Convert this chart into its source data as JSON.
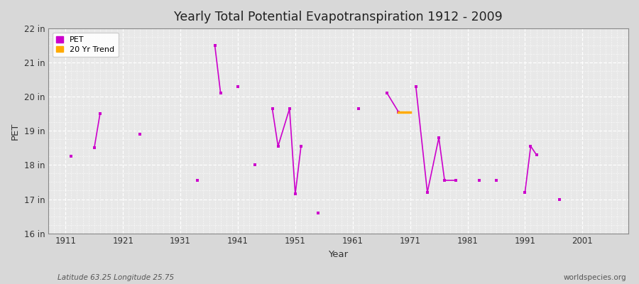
{
  "title": "Yearly Total Potential Evapotranspiration 1912 - 2009",
  "xlabel": "Year",
  "ylabel": "PET",
  "subtitle": "Latitude 63.25 Longitude 25.75",
  "watermark": "worldspecies.org",
  "ylim": [
    16,
    22
  ],
  "xlim": [
    1908,
    2009
  ],
  "yticks": [
    16,
    17,
    18,
    19,
    20,
    21,
    22
  ],
  "ytick_labels": [
    "16 in",
    "17 in",
    "18 in",
    "19 in",
    "20 in",
    "21 in",
    "22 in"
  ],
  "xticks": [
    1911,
    1921,
    1931,
    1941,
    1951,
    1961,
    1971,
    1981,
    1991,
    2001
  ],
  "background_color": "#d8d8d8",
  "plot_bg_color": "#e8e8e8",
  "pet_color": "#cc00cc",
  "trend_color": "#ffaa00",
  "pet_data": [
    [
      1912,
      18.25
    ],
    [
      1916,
      18.5
    ],
    [
      1917,
      19.5
    ],
    [
      1924,
      18.9
    ],
    [
      1934,
      17.55
    ],
    [
      1937,
      21.5
    ],
    [
      1938,
      20.1
    ],
    [
      1941,
      20.3
    ],
    [
      1944,
      18.0
    ],
    [
      1947,
      19.65
    ],
    [
      1948,
      18.55
    ],
    [
      1950,
      19.65
    ],
    [
      1951,
      17.15
    ],
    [
      1952,
      18.55
    ],
    [
      1955,
      16.6
    ],
    [
      1962,
      19.65
    ],
    [
      1967,
      20.1
    ],
    [
      1969,
      19.55
    ],
    [
      1972,
      20.3
    ],
    [
      1974,
      17.2
    ],
    [
      1976,
      18.8
    ],
    [
      1977,
      17.55
    ],
    [
      1979,
      17.55
    ],
    [
      1983,
      17.55
    ],
    [
      1986,
      17.55
    ],
    [
      1991,
      17.2
    ],
    [
      1992,
      18.55
    ],
    [
      1993,
      18.3
    ],
    [
      1997,
      17.0
    ]
  ],
  "trend_data": [
    [
      1969,
      19.55
    ],
    [
      1971,
      19.55
    ]
  ],
  "connect_threshold": 2
}
